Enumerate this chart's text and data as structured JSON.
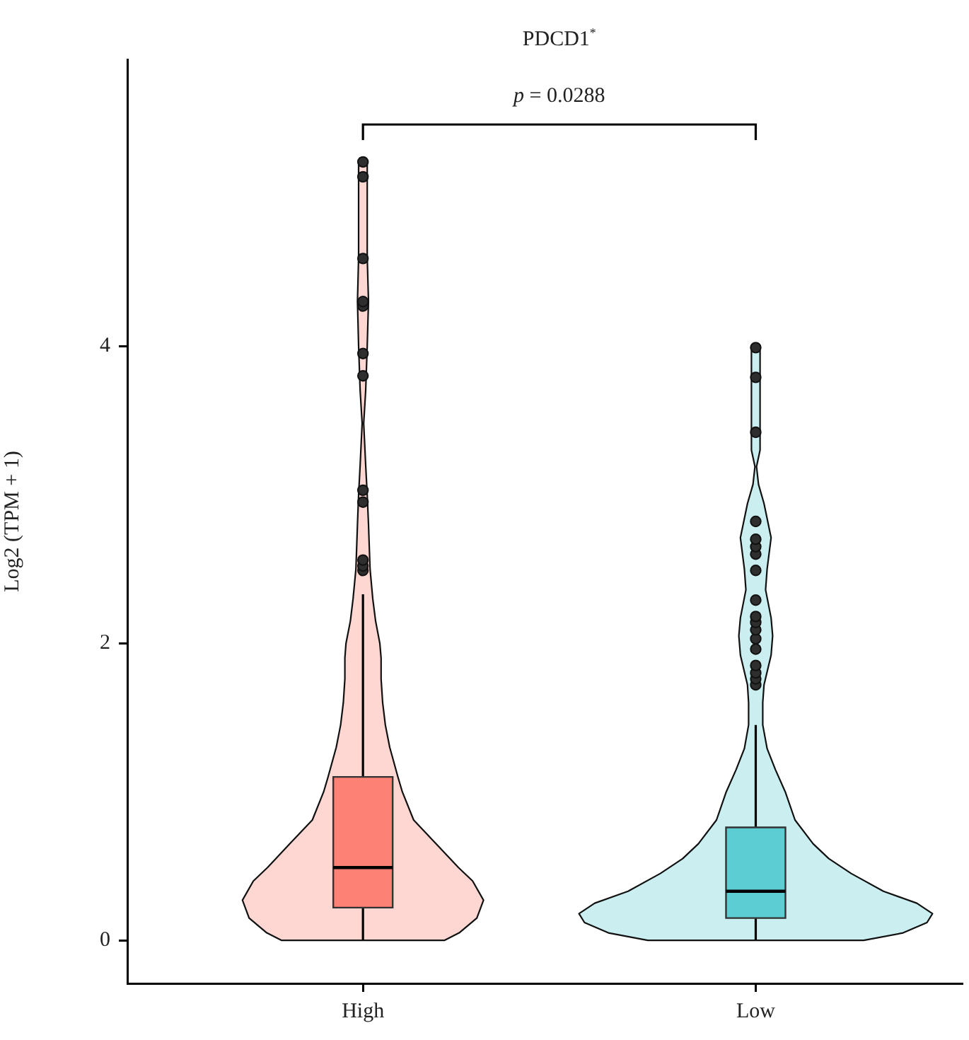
{
  "chart_data": {
    "type": "box",
    "title": "PDCD1$^{*}$",
    "ylabel": "Log2 (TPM + 1)",
    "categories": [
      "High",
      "Low"
    ],
    "colors": [
      "#fd8174",
      "#5ccdd3"
    ],
    "boxes": [
      {
        "low": 0,
        "q1": 0.22,
        "median": 0.49,
        "q3": 1.1,
        "high": 2.33,
        "outliers": [
          2.49,
          2.52,
          2.56,
          2.95,
          3.03,
          3.8,
          3.95,
          4.27,
          4.3,
          4.59,
          5.14,
          5.24
        ]
      },
      {
        "low": 0,
        "q1": 0.15,
        "median": 0.33,
        "q3": 0.76,
        "high": 1.45,
        "outliers": [
          1.72,
          1.76,
          1.8,
          1.85,
          1.96,
          2.03,
          2.09,
          2.14,
          2.18,
          2.29,
          2.49,
          2.6,
          2.65,
          2.7,
          2.82,
          3.42,
          3.79,
          3.99
        ]
      }
    ],
    "ylim": [
      -0.29,
      5.93
    ],
    "yticks": [
      0,
      2,
      4
    ],
    "annotations": [
      "p = 0.0288"
    ]
  }
}
